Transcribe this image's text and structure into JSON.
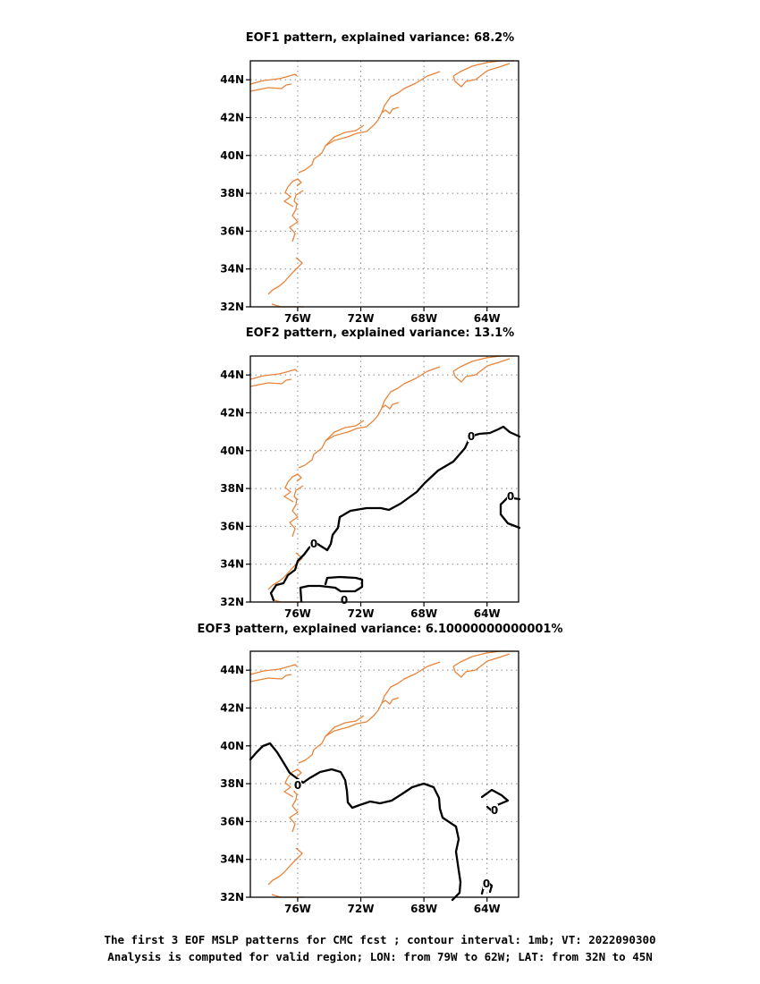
{
  "panels": [
    {
      "title": "EOF1 pattern, explained variance: 68.2%"
    },
    {
      "title": "EOF2 pattern, explained variance: 13.1%"
    },
    {
      "title": "EOF3 pattern, explained variance: 6.10000000000001%"
    }
  ],
  "map": {
    "lon_range": [
      -79,
      -62
    ],
    "lat_range": [
      32,
      45
    ],
    "lat_tick_labels": [
      "32N",
      "34N",
      "36N",
      "38N",
      "40N",
      "42N",
      "44N"
    ],
    "lon_tick_labels": [
      "76W",
      "72W",
      "68W",
      "64W"
    ],
    "grid": "dotted",
    "coastline_color": "#e8843a",
    "contour_color": "#000000",
    "contour_label": "0"
  },
  "caption": {
    "line1": "The first 3 EOF MSLP patterns for CMC fcst ; contour interval: 1mb; VT: 2022090300",
    "line2": "Analysis is computed for valid region; LON: from 79W to 62W; LAT: from 32N to 45N"
  }
}
